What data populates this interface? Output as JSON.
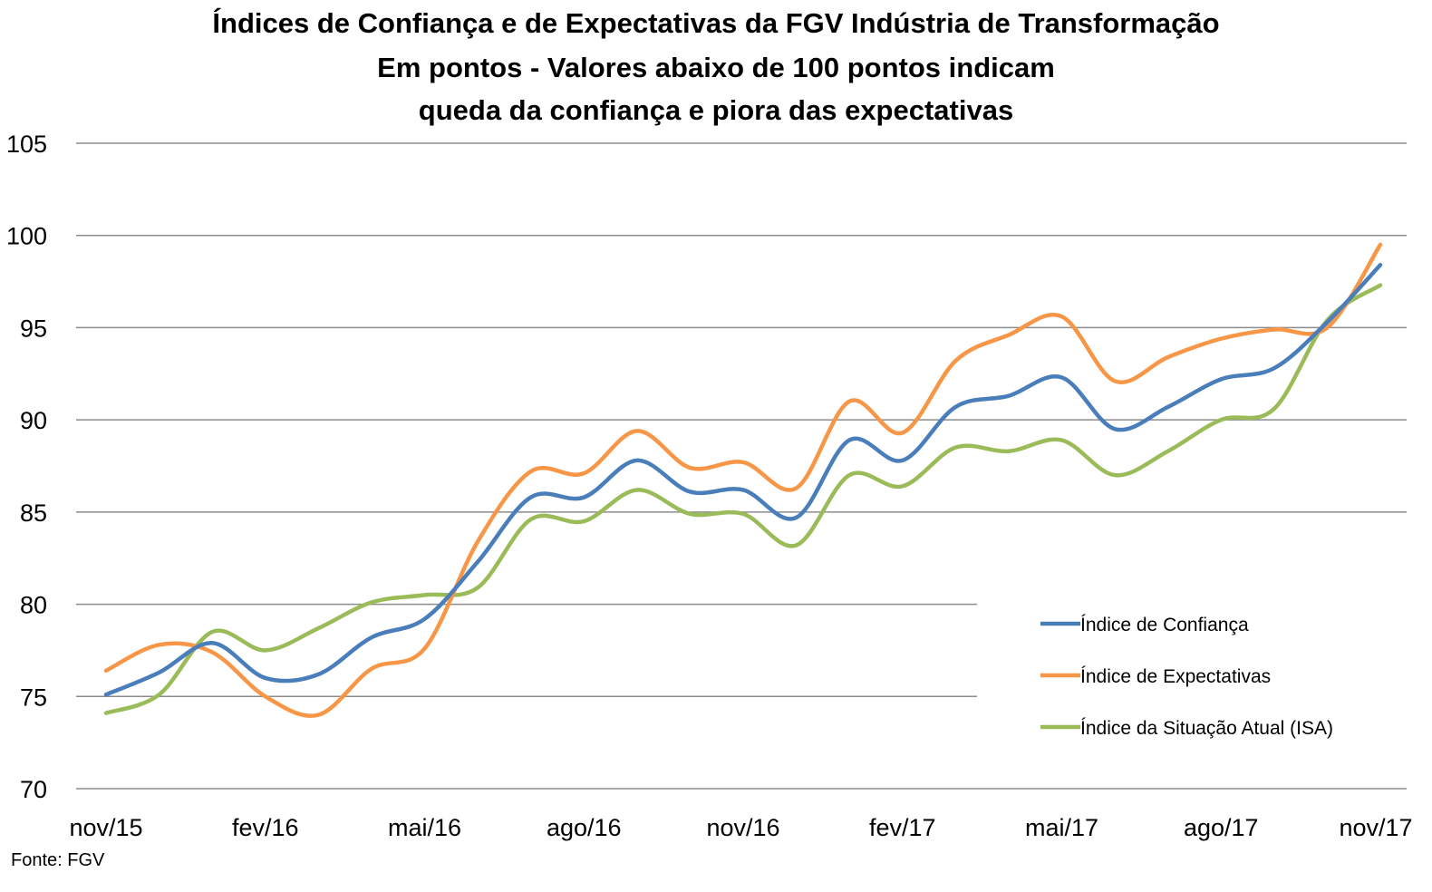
{
  "chart_data": {
    "type": "line",
    "title_lines": [
      "Índices de Confiança e de Expectativas da FGV Indústria de Transformação",
      "Em pontos - Valores abaixo de 100 pontos indicam",
      "queda da confiança e piora das expectativas"
    ],
    "categories": [
      "nov/15",
      "dez/15",
      "jan/16",
      "fev/16",
      "mar/16",
      "abr/16",
      "mai/16",
      "jun/16",
      "jul/16",
      "ago/16",
      "set/16",
      "out/16",
      "nov/16",
      "dez/16",
      "jan/17",
      "fev/17",
      "mar/17",
      "abr/17",
      "mai/17",
      "jun/17",
      "jul/17",
      "ago/17",
      "set/17",
      "out/17",
      "nov/17"
    ],
    "x_tick_labels": [
      "nov/15",
      "fev/16",
      "mai/16",
      "ago/16",
      "nov/16",
      "fev/17",
      "mai/17",
      "ago/17",
      "nov/17"
    ],
    "y_ticks": [
      70,
      75,
      80,
      85,
      90,
      95,
      100,
      105
    ],
    "ylim": [
      70,
      105
    ],
    "grid": true,
    "legend_position": "bottom-right",
    "series": [
      {
        "name": "Índice de Confiança",
        "color": "#4a7ebb",
        "values": [
          75.1,
          76.3,
          77.9,
          76.0,
          76.2,
          78.2,
          79.2,
          82.3,
          85.8,
          85.8,
          87.8,
          86.1,
          86.2,
          84.7,
          88.9,
          87.8,
          90.7,
          91.3,
          92.3,
          89.5,
          90.7,
          92.2,
          92.8,
          95.3,
          98.4
        ]
      },
      {
        "name": "Índice de Expectativas",
        "color": "#f79646",
        "values": [
          76.4,
          77.8,
          77.4,
          75.0,
          74.0,
          76.5,
          77.6,
          83.4,
          87.2,
          87.1,
          89.4,
          87.4,
          87.7,
          86.3,
          91.0,
          89.3,
          93.2,
          94.6,
          95.6,
          92.1,
          93.4,
          94.4,
          94.9,
          95.0,
          99.5
        ]
      },
      {
        "name": "Índice da Situação Atual (ISA)",
        "color": "#9bbb59",
        "values": [
          74.1,
          75.1,
          78.5,
          77.5,
          78.7,
          80.1,
          80.5,
          80.9,
          84.6,
          84.5,
          86.2,
          84.9,
          84.9,
          83.2,
          87.0,
          86.4,
          88.5,
          88.3,
          88.9,
          87.0,
          88.3,
          90.0,
          90.6,
          95.4,
          97.3
        ]
      }
    ]
  },
  "source": "Fonte: FGV"
}
